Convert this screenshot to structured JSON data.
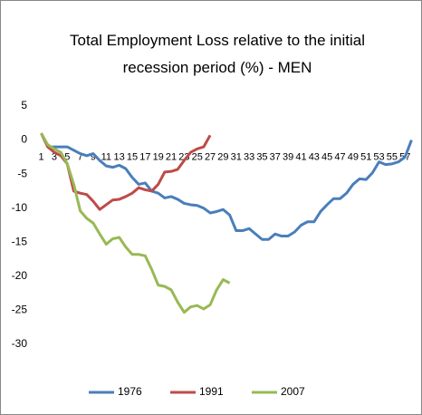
{
  "chart_data": {
    "type": "line",
    "title": "Total Employment Loss relative to the initial recession period (%) - MEN",
    "categories": [
      1,
      null,
      3,
      null,
      5,
      null,
      7,
      null,
      9,
      null,
      11,
      null,
      13,
      null,
      15,
      null,
      17,
      null,
      19,
      null,
      21,
      null,
      23,
      null,
      25,
      null,
      27,
      null,
      29,
      null,
      31,
      null,
      33,
      null,
      35,
      null,
      37,
      null,
      39,
      null,
      41,
      null,
      43,
      null,
      45,
      null,
      47,
      null,
      49,
      null,
      51,
      null,
      53,
      null,
      55,
      null,
      57,
      null
    ],
    "ylim": [
      -30,
      5
    ],
    "yticks": [
      -30,
      -25,
      -20,
      -15,
      -10,
      -5,
      0,
      5
    ],
    "grid": false,
    "legend": "bottom",
    "series": [
      {
        "name": "1976",
        "color": "#4a7ebb",
        "values": [
          1,
          -1,
          -1,
          -1,
          -1,
          -1.5,
          -2,
          -2.3,
          -2,
          -3,
          -3.8,
          -4,
          -3.7,
          -4.2,
          -5.5,
          -6.5,
          -6.3,
          -7.5,
          -7.8,
          -8.5,
          -8.3,
          -8.7,
          -9.3,
          -9.5,
          -9.6,
          -10,
          -10.7,
          -10.5,
          -10.2,
          -11,
          -13.3,
          -13.3,
          -13,
          -13.8,
          -14.6,
          -14.6,
          -13.8,
          -14.1,
          -14.1,
          -13.5,
          -12.5,
          -12,
          -12,
          -10.5,
          -9.5,
          -8.6,
          -8.6,
          -7.8,
          -6.5,
          -5.7,
          -5.8,
          -4.8,
          -3.2,
          -3.6,
          -3.5,
          -3.2,
          -2.5,
          0
        ]
      },
      {
        "name": "1991",
        "color": "#be4b48",
        "values": [
          1,
          -1,
          -1.8,
          -2.3,
          -3.5,
          -7.5,
          -7.8,
          -8,
          -9,
          -10.2,
          -9.5,
          -8.8,
          -8.7,
          -8.3,
          -7.8,
          -7,
          -7.3,
          -7.5,
          -6.5,
          -4.7,
          -4.6,
          -4.3,
          -3,
          -1.8,
          -1.3,
          -1,
          0.7,
          null,
          null,
          null,
          null,
          null,
          null,
          null,
          null,
          null,
          null,
          null,
          null,
          null,
          null,
          null,
          null,
          null,
          null,
          null,
          null,
          null,
          null,
          null,
          null,
          null,
          null,
          null,
          null,
          null,
          null,
          null
        ]
      },
      {
        "name": "2007",
        "color": "#98b954",
        "values": [
          1,
          -0.7,
          -1.3,
          -1.8,
          -3.5,
          -6.5,
          -10.4,
          -11.5,
          -12.2,
          -13.8,
          -15.3,
          -14.5,
          -14.3,
          -15.7,
          -16.8,
          -16.8,
          -17,
          -19,
          -21.3,
          -21.5,
          -22,
          -23.8,
          -25.3,
          -24.5,
          -24.3,
          -24.8,
          -24.2,
          -22,
          -20.5,
          -21,
          null,
          null,
          null,
          null,
          null,
          null,
          null,
          null,
          null,
          null,
          null,
          null,
          null,
          null,
          null,
          null,
          null,
          null,
          null,
          null,
          null,
          null,
          null,
          null,
          null,
          null,
          null,
          null
        ]
      }
    ]
  }
}
